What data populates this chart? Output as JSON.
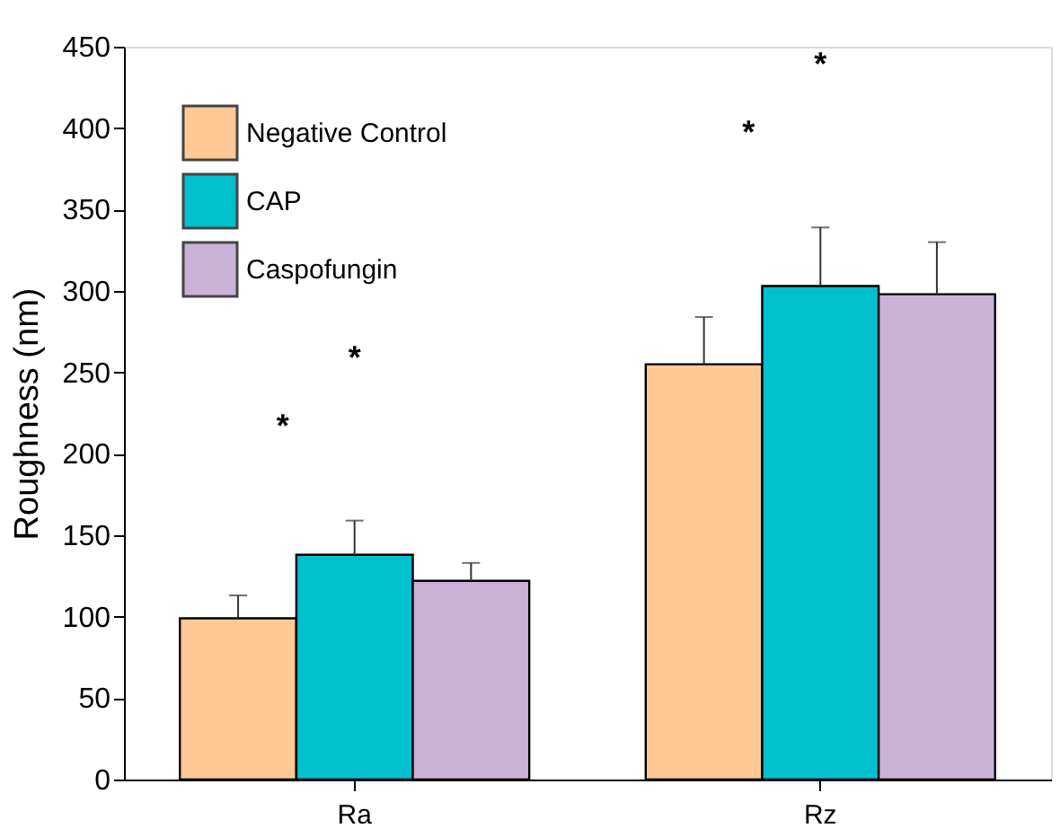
{
  "chart_data": {
    "type": "bar",
    "ylabel": "Roughness (nm)",
    "categories": [
      "Ra",
      "Rz"
    ],
    "series": [
      {
        "name": "Negative Control",
        "color": "#fec994",
        "values": [
          99,
          255
        ],
        "errors": [
          [
            99,
            113
          ],
          [
            255,
            284
          ]
        ]
      },
      {
        "name": "CAP",
        "color": "#00bfcf",
        "values": [
          138,
          303
        ],
        "errors": [
          [
            138,
            159
          ],
          [
            303,
            339
          ]
        ]
      },
      {
        "name": "Caspofungin",
        "color": "#c8b3d7",
        "values": [
          122,
          298
        ],
        "errors": [
          [
            122,
            133
          ],
          [
            298,
            330
          ]
        ]
      }
    ],
    "ylim": [
      0,
      450
    ],
    "yticks": [
      0,
      50,
      100,
      150,
      200,
      250,
      300,
      350,
      400,
      450
    ],
    "annotations": [
      "*",
      "*",
      "*",
      "*"
    ],
    "grid": false,
    "legend": "top left"
  }
}
